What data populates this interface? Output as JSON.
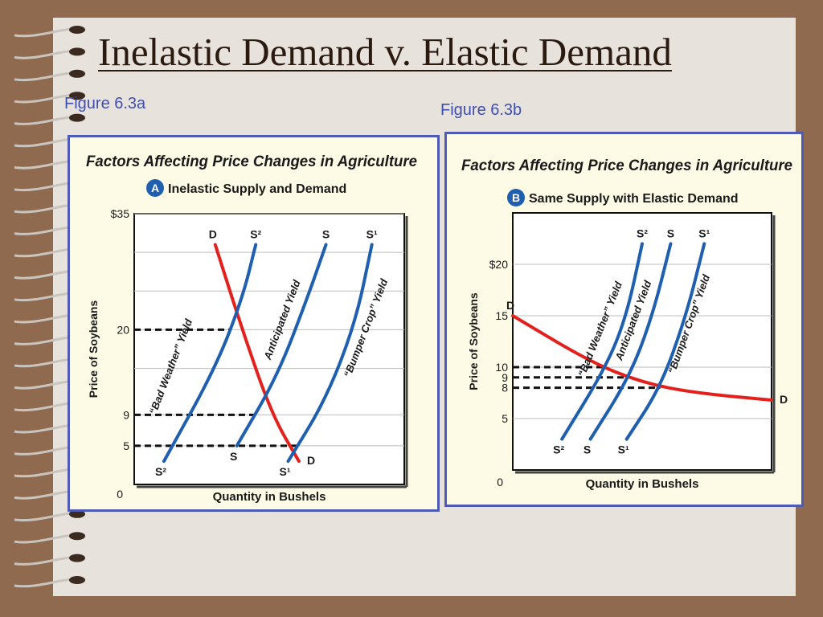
{
  "slide": {
    "title": "Inelastic Demand v. Elastic Demand",
    "caption_a": "Figure 6.3a",
    "caption_b": "Figure 6.3b"
  },
  "colors": {
    "background": "#8f6a4f",
    "paper": "#e7e2dc",
    "panel_border": "#4f5ab5",
    "panel_bg": "#fdfbe6",
    "demand": "#e3201b",
    "supply": "#1f5fb0",
    "caption": "#3f4faf"
  },
  "chart_data": [
    {
      "type": "line",
      "title": "Factors Affecting Price Changes in Agriculture",
      "subtitle_badge": "A",
      "subtitle": "Inelastic Supply and Demand",
      "xlabel": "Quantity in Bushels",
      "ylabel": "Price of Soybeans",
      "yticks": [
        {
          "value": 0,
          "label": "0"
        },
        {
          "value": 5,
          "label": "5"
        },
        {
          "value": 9,
          "label": "9"
        },
        {
          "value": 20,
          "label": "20"
        },
        {
          "value": 35,
          "label": "$35"
        }
      ],
      "gridlines": [
        5,
        9,
        15,
        20,
        25,
        30,
        35
      ],
      "ylim": [
        0,
        35
      ],
      "xlim": [
        0,
        100
      ],
      "grid": true,
      "series": [
        {
          "name": "D",
          "role": "demand",
          "color": "#e3201b",
          "points": [
            [
              30,
              31
            ],
            [
              40,
              20
            ],
            [
              51,
              9
            ],
            [
              61,
              3
            ]
          ],
          "start_label": "D",
          "end_label": "D"
        },
        {
          "name": "S²",
          "role": "supply",
          "color": "#1f5fb0",
          "points": [
            [
              11,
              3
            ],
            [
              30,
              15
            ],
            [
              40,
              24
            ],
            [
              45,
              31
            ]
          ],
          "top_label": "S²",
          "bottom_label": "S²",
          "curve_label": "“Bad Weather” Yield"
        },
        {
          "name": "S",
          "role": "supply",
          "color": "#1f5fb0",
          "points": [
            [
              38,
              5
            ],
            [
              53,
              14
            ],
            [
              64,
              24
            ],
            [
              71,
              31
            ]
          ],
          "top_label": "S",
          "bottom_label": "S",
          "curve_label": "Anticipated Yield"
        },
        {
          "name": "S¹",
          "role": "supply",
          "color": "#1f5fb0",
          "points": [
            [
              57,
              3
            ],
            [
              71,
              11
            ],
            [
              82,
              21
            ],
            [
              88,
              31
            ]
          ],
          "top_label": "S¹",
          "bottom_label": "S¹",
          "curve_label": "“Bumper Crop” Yield"
        }
      ],
      "equilibrium_prices": [
        20,
        9,
        5
      ]
    },
    {
      "type": "line",
      "title": "Factors Affecting Price Changes in Agriculture",
      "subtitle_badge": "B",
      "subtitle": "Same Supply with Elastic Demand",
      "xlabel": "Quantity in Bushels",
      "ylabel": "Price of Soybeans",
      "yticks": [
        {
          "value": 0,
          "label": "0"
        },
        {
          "value": 5,
          "label": "5"
        },
        {
          "value": 8,
          "label": "8"
        },
        {
          "value": 9,
          "label": "9"
        },
        {
          "value": 10,
          "label": "10"
        },
        {
          "value": 15,
          "label": "15"
        },
        {
          "value": 20,
          "label": "$20"
        }
      ],
      "gridlines": [
        5,
        10,
        15,
        20
      ],
      "ylim": [
        0,
        25
      ],
      "xlim": [
        0,
        100
      ],
      "grid": true,
      "series": [
        {
          "name": "D",
          "role": "demand",
          "color": "#e3201b",
          "points": [
            [
              0,
              15
            ],
            [
              30,
              10.5
            ],
            [
              50,
              8.5
            ],
            [
              70,
              7.5
            ],
            [
              100,
              6.8
            ]
          ],
          "start_label": "D",
          "end_label": "D"
        },
        {
          "name": "S²",
          "role": "supply",
          "color": "#1f5fb0",
          "points": [
            [
              19,
              3
            ],
            [
              36,
              10
            ],
            [
              44,
              15
            ],
            [
              50,
              22
            ]
          ],
          "top_label": "S²",
          "bottom_label": "S²",
          "curve_label": "“Bad Weather” Yield"
        },
        {
          "name": "S",
          "role": "supply",
          "color": "#1f5fb0",
          "points": [
            [
              30,
              3
            ],
            [
              45,
              9
            ],
            [
              54,
              15
            ],
            [
              61,
              22
            ]
          ],
          "top_label": "S",
          "bottom_label": "S",
          "curve_label": "Anticipated Yield"
        },
        {
          "name": "S¹",
          "role": "supply",
          "color": "#1f5fb0",
          "points": [
            [
              44,
              3
            ],
            [
              57,
              8
            ],
            [
              67,
              15
            ],
            [
              74,
              22
            ]
          ],
          "top_label": "S¹",
          "bottom_label": "S¹",
          "curve_label": "“Bumper Crop” Yield"
        }
      ],
      "equilibrium_prices": [
        10,
        9,
        8
      ]
    }
  ]
}
